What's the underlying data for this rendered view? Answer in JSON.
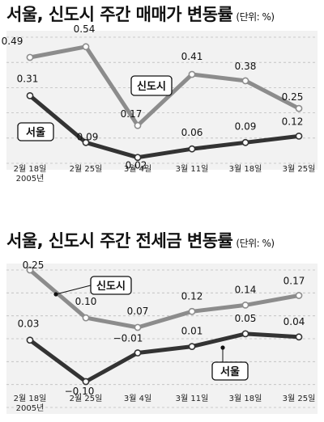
{
  "chart_data": [
    {
      "type": "line",
      "title": "서울, 신도시 주간 매매가 변동률",
      "unit": "(단위: %)",
      "categories": [
        "2월 18일",
        "2월 25일",
        "3월 4일",
        "3월 11일",
        "3월 18일",
        "3월 25일"
      ],
      "category_sub": "2005년",
      "series": [
        {
          "name": "신도시",
          "values": [
            0.49,
            0.54,
            0.17,
            0.41,
            0.38,
            0.25
          ],
          "value_labels": [
            "0.49",
            "0.54",
            "0.17",
            "0.41",
            "0.38",
            "0.25"
          ],
          "color": "#8c8c8c"
        },
        {
          "name": "서울",
          "values": [
            0.31,
            0.09,
            0.02,
            0.06,
            0.09,
            0.12
          ],
          "value_labels": [
            "0.31",
            "0.09",
            "0.02",
            "0.06",
            "0.09",
            "0.12"
          ],
          "color": "#333333"
        }
      ],
      "grid": true
    },
    {
      "type": "line",
      "title": "서울, 신도시 주간 전세금 변동률",
      "unit": "(단위: %)",
      "categories": [
        "2월 18일",
        "2월 25일",
        "3월 4일",
        "3월 11일",
        "3월 18일",
        "3월 25일"
      ],
      "category_sub": "2005년",
      "series": [
        {
          "name": "신도시",
          "values": [
            0.25,
            0.1,
            0.07,
            0.12,
            0.14,
            0.17
          ],
          "value_labels": [
            "0.25",
            "0.10",
            "0.07",
            "0.12",
            "0.14",
            "0.17"
          ],
          "color": "#8c8c8c"
        },
        {
          "name": "서울",
          "values": [
            0.03,
            -0.1,
            -0.01,
            0.01,
            0.05,
            0.04
          ],
          "value_labels": [
            "0.03",
            "−0.10",
            "−0.01",
            "0.01",
            "0.05",
            "0.04"
          ],
          "color": "#333333"
        }
      ],
      "grid": true
    }
  ]
}
